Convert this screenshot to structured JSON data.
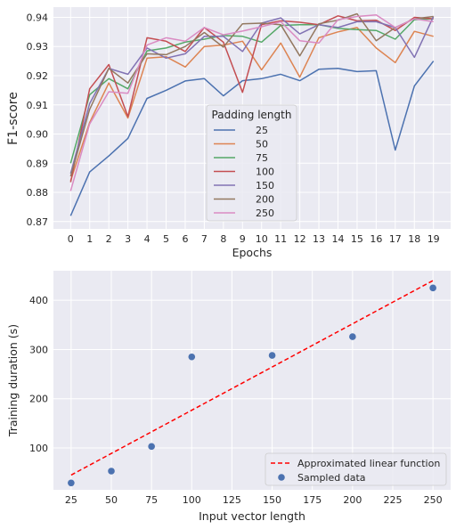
{
  "chart_data": [
    {
      "type": "line",
      "title": "",
      "xlabel": "Epochs",
      "ylabel": "F1-score",
      "xlim": [
        -0.9,
        19.9
      ],
      "ylim": [
        0.8675,
        0.9435
      ],
      "x": [
        0,
        1,
        2,
        3,
        4,
        5,
        6,
        7,
        8,
        9,
        10,
        11,
        12,
        13,
        14,
        15,
        16,
        17,
        18,
        19
      ],
      "xticks": [
        "0",
        "1",
        "2",
        "3",
        "4",
        "5",
        "6",
        "7",
        "8",
        "9",
        "10",
        "11",
        "12",
        "13",
        "14",
        "15",
        "16",
        "17",
        "18",
        "19"
      ],
      "yticks": [
        "0.87",
        "0.88",
        "0.89",
        "0.90",
        "0.91",
        "0.92",
        "0.93",
        "0.94"
      ],
      "ytick_values": [
        0.87,
        0.88,
        0.89,
        0.9,
        0.91,
        0.92,
        0.93,
        0.94
      ],
      "grid": true,
      "legend": {
        "title": "Padding length",
        "position": "center-bottom"
      },
      "series": [
        {
          "name": "25",
          "color": "#4c72b0",
          "values": [
            0.872,
            0.887,
            0.8925,
            0.8985,
            0.9122,
            0.915,
            0.9182,
            0.919,
            0.9131,
            0.9183,
            0.919,
            0.9205,
            0.9183,
            0.9222,
            0.9225,
            0.9214,
            0.9217,
            0.8945,
            0.9165,
            0.925
          ]
        },
        {
          "name": "50",
          "color": "#dd8452",
          "values": [
            0.884,
            0.904,
            0.9175,
            0.9055,
            0.926,
            0.9265,
            0.923,
            0.93,
            0.9305,
            0.9318,
            0.922,
            0.9312,
            0.9195,
            0.933,
            0.935,
            0.9365,
            0.9295,
            0.9245,
            0.9352,
            0.9335
          ]
        },
        {
          "name": "75",
          "color": "#55a868",
          "values": [
            0.89,
            0.9135,
            0.919,
            0.9155,
            0.9285,
            0.9295,
            0.9315,
            0.9325,
            0.9338,
            0.9335,
            0.9315,
            0.9372,
            0.9375,
            0.9375,
            0.9362,
            0.9358,
            0.9355,
            0.9325,
            0.9392,
            0.9395
          ]
        },
        {
          "name": "100",
          "color": "#c44e52",
          "values": [
            0.8835,
            0.9155,
            0.9238,
            0.906,
            0.933,
            0.9318,
            0.9283,
            0.9365,
            0.9315,
            0.9143,
            0.9375,
            0.9388,
            0.9383,
            0.9375,
            0.9405,
            0.9388,
            0.939,
            0.9355,
            0.94,
            0.9395
          ]
        },
        {
          "name": "150",
          "color": "#8172b3",
          "values": [
            0.8865,
            0.9105,
            0.9225,
            0.9205,
            0.9295,
            0.926,
            0.9275,
            0.9335,
            0.9335,
            0.9283,
            0.938,
            0.9398,
            0.9343,
            0.9375,
            0.9365,
            0.9385,
            0.9385,
            0.9365,
            0.9263,
            0.9403
          ]
        },
        {
          "name": "200",
          "color": "#937860",
          "values": [
            0.8855,
            0.9085,
            0.9225,
            0.9175,
            0.9275,
            0.9272,
            0.93,
            0.9348,
            0.9298,
            0.9378,
            0.938,
            0.9375,
            0.9268,
            0.9378,
            0.939,
            0.9412,
            0.932,
            0.9365,
            0.9395,
            0.9403
          ]
        },
        {
          "name": "250",
          "color": "#da8bc3",
          "values": [
            0.8805,
            0.9035,
            0.9145,
            0.914,
            0.9305,
            0.933,
            0.9318,
            0.9365,
            0.934,
            0.9353,
            0.9368,
            0.9385,
            0.932,
            0.9312,
            0.9392,
            0.9403,
            0.9408,
            0.9365,
            0.9395,
            0.9385
          ]
        }
      ]
    },
    {
      "type": "scatter",
      "title": "",
      "xlabel": "Input vector length",
      "ylabel": "Training duration (s)",
      "xlim": [
        14,
        261
      ],
      "ylim": [
        15,
        460
      ],
      "xticks": [
        "25",
        "50",
        "75",
        "100",
        "125",
        "150",
        "175",
        "200",
        "225",
        "250"
      ],
      "xtick_values": [
        25,
        50,
        75,
        100,
        125,
        150,
        175,
        200,
        225,
        250
      ],
      "yticks": [
        "100",
        "200",
        "300",
        "400"
      ],
      "ytick_values": [
        100,
        200,
        300,
        400
      ],
      "grid": true,
      "legend": {
        "position": "lower-right"
      },
      "scatter_series": {
        "name": "Sampled data",
        "color": "#4c72b0",
        "points": [
          [
            25,
            29
          ],
          [
            50,
            53
          ],
          [
            75,
            103
          ],
          [
            100,
            285
          ],
          [
            150,
            288
          ],
          [
            200,
            326
          ],
          [
            250,
            425
          ]
        ]
      },
      "line_series": {
        "name": "Approximated linear function",
        "color": "#ff0000",
        "style": "dashed",
        "points": [
          [
            25,
            45
          ],
          [
            250,
            440
          ]
        ]
      }
    }
  ]
}
